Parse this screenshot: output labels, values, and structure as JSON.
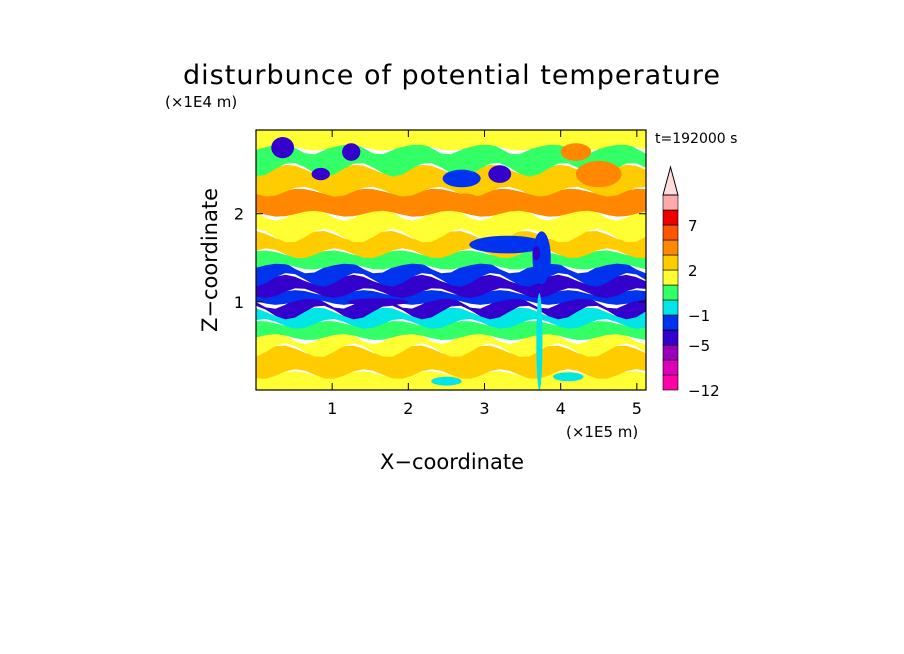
{
  "chart_data": {
    "type": "heatmap",
    "title": "disturbunce of potential temperature",
    "xlabel": "X−coordinate",
    "ylabel": "Z−coordinate",
    "x_unit": "(×1E5 m)",
    "y_unit": "(×1E4 m)",
    "time_label": "t=192000 s",
    "xlim": [
      0,
      5.12
    ],
    "ylim": [
      0,
      2.95
    ],
    "x_ticks": [
      1,
      2,
      3,
      4,
      5
    ],
    "x_tick_labels": [
      "1",
      "2",
      "3",
      "4",
      "5"
    ],
    "y_ticks": [
      1,
      2
    ],
    "y_tick_labels": [
      "1",
      "2"
    ],
    "colorbar": {
      "levels": [
        -12,
        -10,
        -8,
        -5,
        -3,
        -1,
        0,
        1,
        2,
        3,
        5,
        7,
        9,
        10
      ],
      "colors": [
        "#ff00aa",
        "#dd00bb",
        "#9900bb",
        "#3300cc",
        "#0033ee",
        "#00e5e5",
        "#33ff66",
        "#ffff33",
        "#ffcc00",
        "#ff8800",
        "#ff5500",
        "#ee0000",
        "#ffaaaa"
      ],
      "extend_color": "#ffdddd",
      "tick_labels": [
        "7",
        "2",
        "−1",
        "−5",
        "−12"
      ],
      "tick_values": [
        7,
        2,
        -1,
        -5,
        -12
      ]
    },
    "layers": [
      {
        "z_top": 0.18,
        "value": 1.5
      },
      {
        "z_top": 0.45,
        "value": 2.5
      },
      {
        "z_top": 0.6,
        "value": 1.5
      },
      {
        "z_top": 0.75,
        "value": 0.5
      },
      {
        "z_top": 0.88,
        "value": -0.5
      },
      {
        "z_top": 1.0,
        "value": -3.5
      },
      {
        "z_top": 1.1,
        "value": -1.5
      },
      {
        "z_top": 1.25,
        "value": -4.5
      },
      {
        "z_top": 1.4,
        "value": -1.5
      },
      {
        "z_top": 1.55,
        "value": 0.5
      },
      {
        "z_top": 1.75,
        "value": 2.5
      },
      {
        "z_top": 2.0,
        "value": 1.5
      },
      {
        "z_top": 2.25,
        "value": 3.5
      },
      {
        "z_top": 2.5,
        "value": 2.5
      },
      {
        "z_top": 2.75,
        "value": 0.5
      },
      {
        "z_top": 2.95,
        "value": 1.5
      }
    ],
    "blobs": [
      {
        "x": 0.35,
        "z": 2.75,
        "rx": 0.15,
        "rz": 0.12,
        "value": -4.5
      },
      {
        "x": 1.25,
        "z": 2.7,
        "rx": 0.12,
        "rz": 0.1,
        "value": -4.5
      },
      {
        "x": 0.85,
        "z": 2.45,
        "rx": 0.12,
        "rz": 0.07,
        "value": -3.5
      },
      {
        "x": 2.7,
        "z": 2.4,
        "rx": 0.25,
        "rz": 0.1,
        "value": -1.5
      },
      {
        "x": 3.2,
        "z": 2.45,
        "rx": 0.15,
        "rz": 0.1,
        "value": -3.5
      },
      {
        "x": 4.5,
        "z": 2.45,
        "rx": 0.3,
        "rz": 0.15,
        "value": 4
      },
      {
        "x": 4.2,
        "z": 2.7,
        "rx": 0.2,
        "rz": 0.1,
        "value": 4
      },
      {
        "x": 2.75,
        "z": 2.15,
        "rx": 0.18,
        "rz": 0.08,
        "value": 4
      },
      {
        "x": 3.3,
        "z": 1.65,
        "rx": 0.5,
        "rz": 0.1,
        "value": -1.5
      },
      {
        "x": 3.75,
        "z": 1.5,
        "rx": 0.12,
        "rz": 0.3,
        "value": -1.5
      },
      {
        "x": 3.68,
        "z": 1.55,
        "rx": 0.05,
        "rz": 0.08,
        "value": -4.5
      },
      {
        "x": 3.72,
        "z": 0.55,
        "rx": 0.04,
        "rz": 0.55,
        "value": -0.5
      },
      {
        "x": 1.6,
        "z": 1.0,
        "rx": 0.4,
        "rz": 0.04,
        "value": -3.5
      },
      {
        "x": 4.1,
        "z": 0.15,
        "rx": 0.2,
        "rz": 0.05,
        "value": -0.5
      },
      {
        "x": 2.5,
        "z": 0.1,
        "rx": 0.2,
        "rz": 0.05,
        "value": -0.5
      }
    ]
  }
}
